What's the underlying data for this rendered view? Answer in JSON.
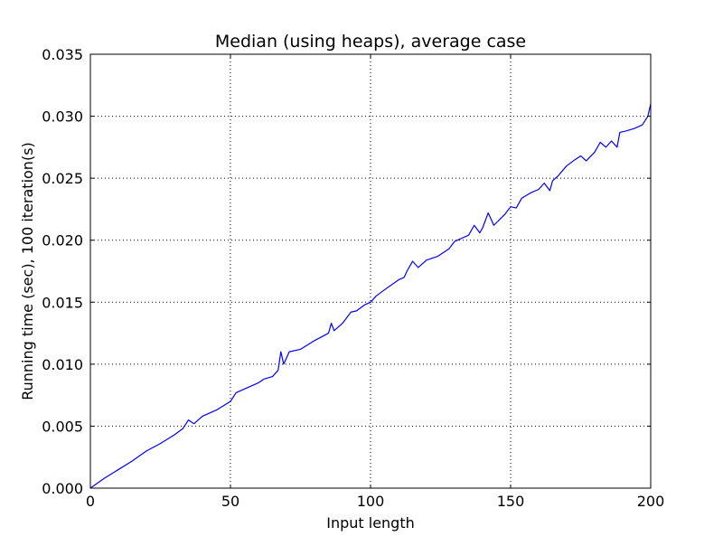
{
  "chart_data": {
    "type": "line",
    "title": "Median (using heaps), average case",
    "xlabel": "Input length",
    "ylabel": "Running time (sec), 100 iteration(s)",
    "xlim": [
      0,
      200
    ],
    "ylim": [
      0,
      0.035
    ],
    "xticks": [
      0,
      50,
      100,
      150,
      200
    ],
    "xtick_labels": [
      "0",
      "50",
      "100",
      "150",
      "200"
    ],
    "yticks": [
      0,
      0.005,
      0.01,
      0.015,
      0.02,
      0.025,
      0.03,
      0.035
    ],
    "ytick_labels": [
      "0.000",
      "0.005",
      "0.010",
      "0.015",
      "0.020",
      "0.025",
      "0.030",
      "0.035"
    ],
    "grid": true,
    "series": [
      {
        "color": "#0000ff",
        "points": [
          [
            0,
            0.0
          ],
          [
            5,
            0.0008
          ],
          [
            10,
            0.0015
          ],
          [
            15,
            0.0022
          ],
          [
            20,
            0.003
          ],
          [
            25,
            0.0036
          ],
          [
            30,
            0.0043
          ],
          [
            33,
            0.0048
          ],
          [
            35,
            0.0055
          ],
          [
            37,
            0.0052
          ],
          [
            40,
            0.0058
          ],
          [
            45,
            0.0063
          ],
          [
            50,
            0.007
          ],
          [
            52,
            0.0077
          ],
          [
            55,
            0.008
          ],
          [
            60,
            0.0085
          ],
          [
            62,
            0.0088
          ],
          [
            65,
            0.009
          ],
          [
            67,
            0.0095
          ],
          [
            68,
            0.011
          ],
          [
            69,
            0.01
          ],
          [
            71,
            0.011
          ],
          [
            75,
            0.0112
          ],
          [
            80,
            0.0119
          ],
          [
            85,
            0.0125
          ],
          [
            86,
            0.0133
          ],
          [
            87,
            0.0127
          ],
          [
            90,
            0.0133
          ],
          [
            93,
            0.0142
          ],
          [
            95,
            0.0143
          ],
          [
            98,
            0.0148
          ],
          [
            100,
            0.015
          ],
          [
            102,
            0.0155
          ],
          [
            105,
            0.016
          ],
          [
            110,
            0.0168
          ],
          [
            112,
            0.017
          ],
          [
            113,
            0.0175
          ],
          [
            115,
            0.0183
          ],
          [
            117,
            0.0178
          ],
          [
            120,
            0.0184
          ],
          [
            124,
            0.0187
          ],
          [
            128,
            0.0193
          ],
          [
            130,
            0.0199
          ],
          [
            135,
            0.0204
          ],
          [
            137,
            0.0212
          ],
          [
            139,
            0.0206
          ],
          [
            140,
            0.021
          ],
          [
            142,
            0.0222
          ],
          [
            144,
            0.0212
          ],
          [
            148,
            0.0221
          ],
          [
            150,
            0.0227
          ],
          [
            152,
            0.0226
          ],
          [
            154,
            0.0234
          ],
          [
            157,
            0.0238
          ],
          [
            160,
            0.0241
          ],
          [
            162,
            0.0246
          ],
          [
            164,
            0.024
          ],
          [
            165,
            0.0248
          ],
          [
            167,
            0.0252
          ],
          [
            170,
            0.026
          ],
          [
            173,
            0.0265
          ],
          [
            175,
            0.0268
          ],
          [
            177,
            0.0264
          ],
          [
            180,
            0.0271
          ],
          [
            182,
            0.0279
          ],
          [
            184,
            0.0275
          ],
          [
            186,
            0.028
          ],
          [
            188,
            0.0275
          ],
          [
            189,
            0.0287
          ],
          [
            191,
            0.0288
          ],
          [
            194,
            0.029
          ],
          [
            197,
            0.0293
          ],
          [
            199,
            0.03
          ],
          [
            200,
            0.031
          ]
        ]
      }
    ]
  }
}
